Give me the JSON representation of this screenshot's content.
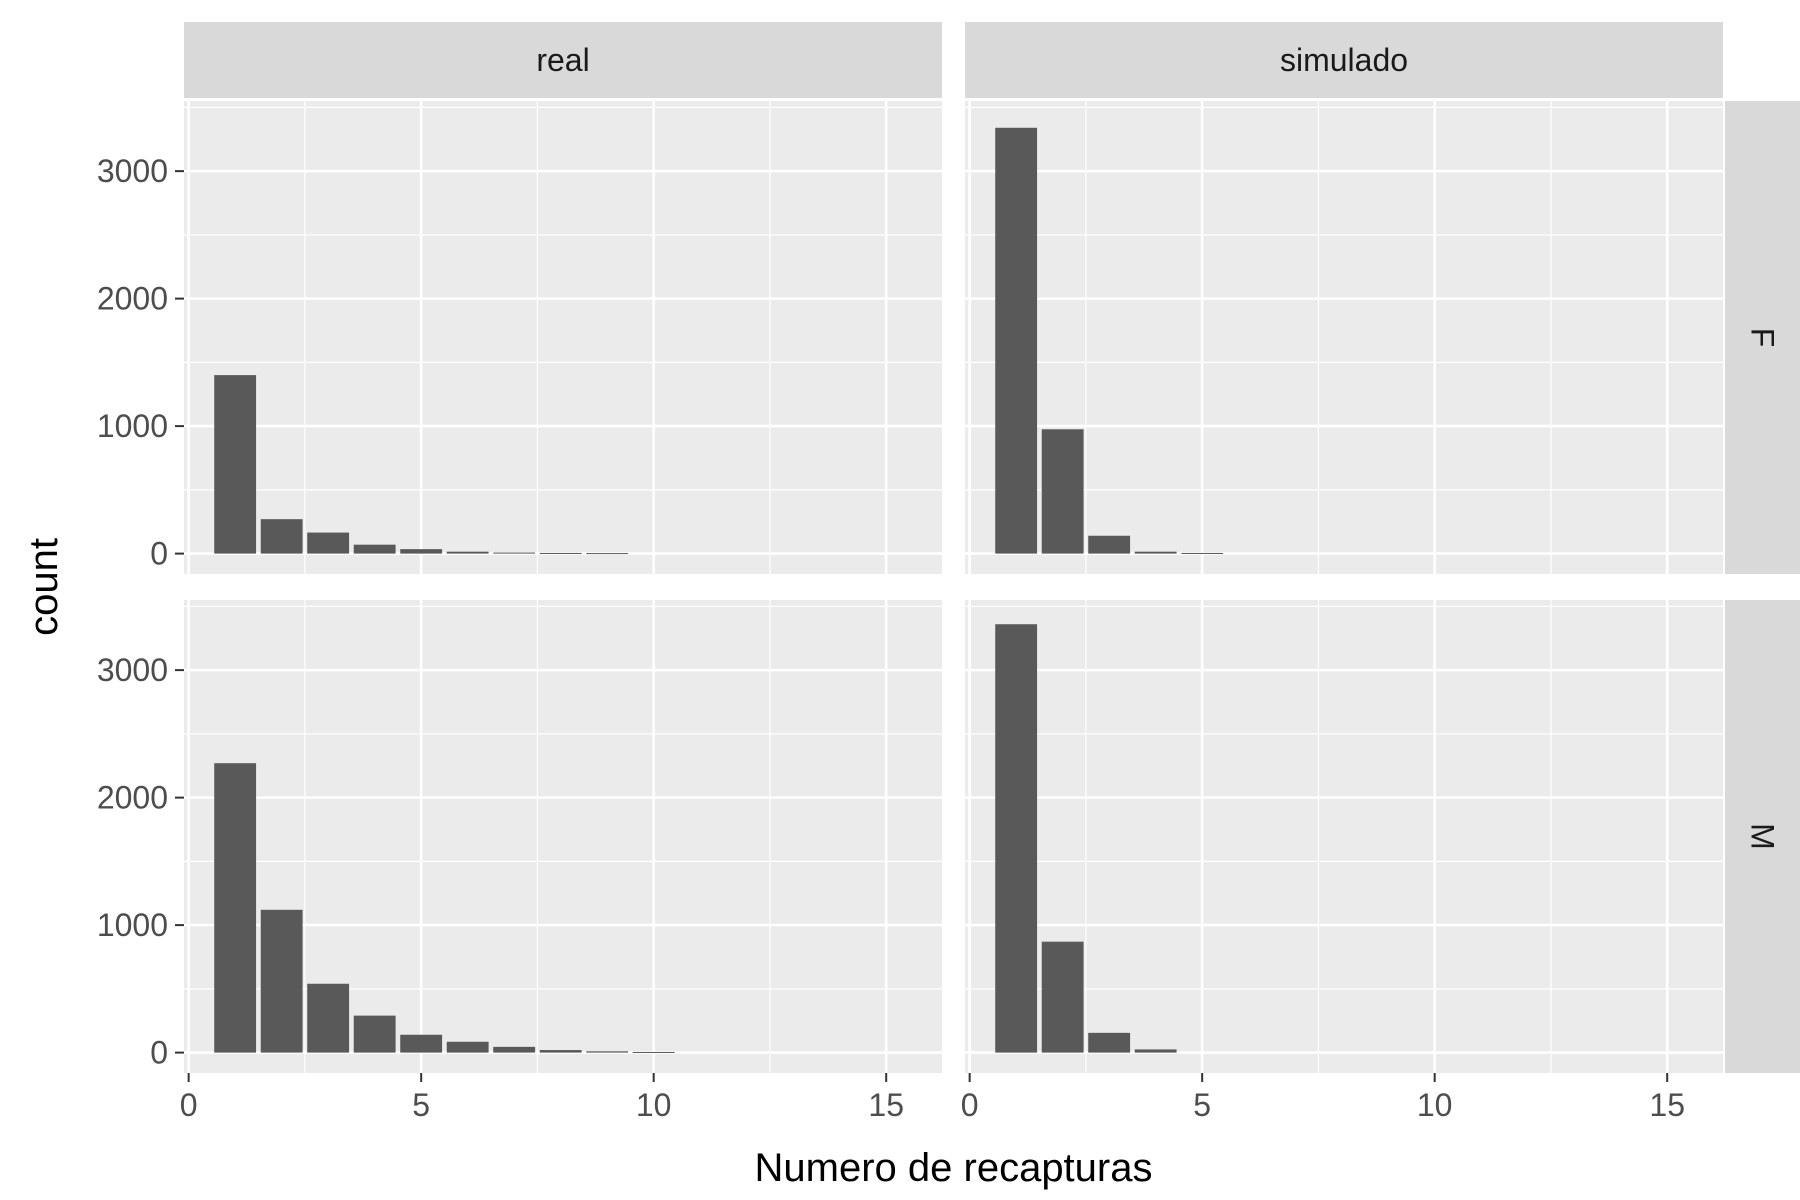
{
  "chart_data": {
    "type": "bar",
    "xlabel": "Numero de recapturas",
    "ylabel": "count",
    "facet_columns": [
      "real",
      "simulado"
    ],
    "facet_rows": [
      "F",
      "M"
    ],
    "xlim": [
      -0.1,
      16.2
    ],
    "ylim": [
      -160,
      3550
    ],
    "x_ticks": [
      0,
      5,
      10,
      15
    ],
    "y_ticks": [
      0,
      1000,
      2000,
      3000
    ],
    "grid": true,
    "bar_color": "#595959",
    "panels": [
      {
        "column": "real",
        "row": "F",
        "x": [
          1,
          2,
          3,
          4,
          5,
          6,
          7,
          8,
          9
        ],
        "values": [
          1400,
          270,
          165,
          70,
          35,
          15,
          8,
          5,
          4
        ]
      },
      {
        "column": "simulado",
        "row": "F",
        "x": [
          1,
          2,
          3,
          4,
          5
        ],
        "values": [
          3340,
          975,
          140,
          15,
          5
        ]
      },
      {
        "column": "real",
        "row": "M",
        "x": [
          1,
          2,
          3,
          4,
          5,
          6,
          7,
          8,
          9,
          10
        ],
        "values": [
          2270,
          1120,
          540,
          290,
          140,
          85,
          45,
          20,
          10,
          5
        ]
      },
      {
        "column": "simulado",
        "row": "M",
        "x": [
          1,
          2,
          3,
          4
        ],
        "values": [
          3360,
          870,
          155,
          25
        ]
      }
    ]
  }
}
